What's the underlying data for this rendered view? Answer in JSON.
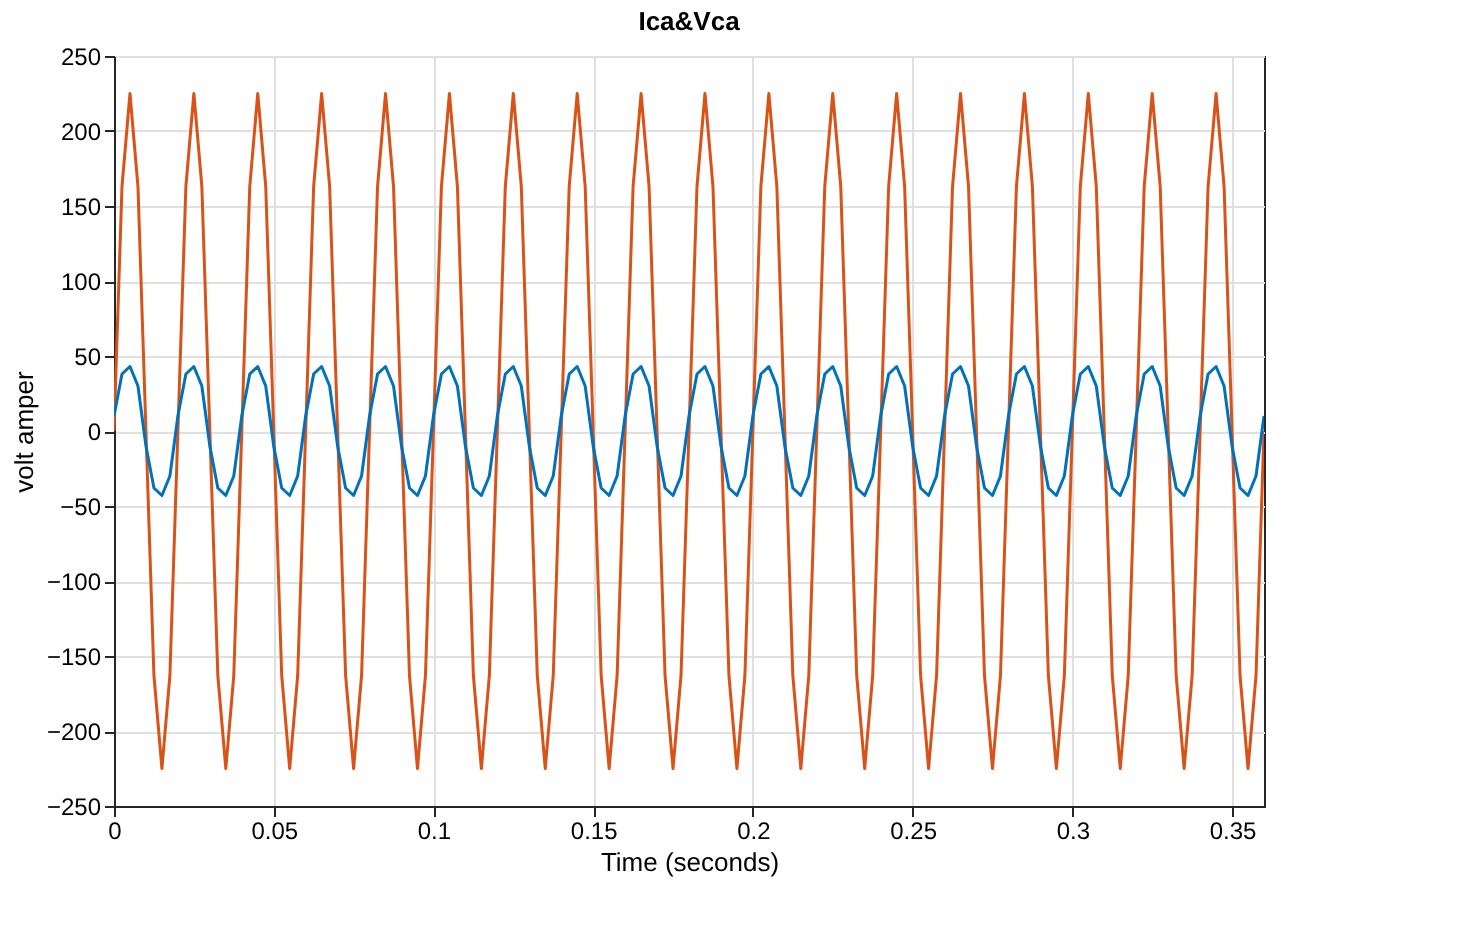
{
  "chart_data": {
    "type": "line",
    "title": "Ica&Vca",
    "xlabel": "Time (seconds)",
    "ylabel": "volt          amper",
    "x": [
      0,
      0.0025,
      0.005,
      0.0075,
      0.01,
      0.0125,
      0.015,
      0.0175,
      0.02,
      0.0225,
      0.025,
      0.0275,
      0.03,
      0.0325,
      0.035,
      0.0375,
      0.04,
      0.0425,
      0.045,
      0.0475,
      0.05,
      0.0525,
      0.055,
      0.0575,
      0.06,
      0.0625,
      0.065,
      0.0675,
      0.07,
      0.0725,
      0.075,
      0.0775,
      0.08,
      0.0825,
      0.085,
      0.0875,
      0.09,
      0.0925,
      0.095,
      0.0975,
      0.1,
      0.1025,
      0.105,
      0.1075,
      0.11,
      0.1125,
      0.115,
      0.1175,
      0.12,
      0.1225,
      0.125,
      0.1275,
      0.13,
      0.1325,
      0.135,
      0.1375,
      0.14,
      0.1425,
      0.145,
      0.1475,
      0.15,
      0.1525,
      0.155,
      0.1575,
      0.16,
      0.1625,
      0.165,
      0.1675,
      0.17,
      0.1725,
      0.175,
      0.1775,
      0.18,
      0.1825,
      0.185,
      0.1875,
      0.19,
      0.1925,
      0.195,
      0.1975,
      0.2,
      0.2025,
      0.205,
      0.2075,
      0.21,
      0.2125,
      0.215,
      0.2175,
      0.22,
      0.2225,
      0.225,
      0.2275,
      0.23,
      0.2325,
      0.235,
      0.2375,
      0.24,
      0.2425,
      0.245,
      0.2475,
      0.25,
      0.2525,
      0.255,
      0.2575,
      0.26,
      0.2625,
      0.265,
      0.2675,
      0.27,
      0.2725,
      0.275,
      0.2775,
      0.28,
      0.2825,
      0.285,
      0.2875,
      0.29,
      0.2925,
      0.295,
      0.2975,
      0.3,
      0.3025,
      0.305,
      0.3075,
      0.31,
      0.3125,
      0.315,
      0.3175,
      0.32,
      0.3225,
      0.325,
      0.3275,
      0.33,
      0.3325,
      0.335,
      0.3375,
      0.34,
      0.3425,
      0.345,
      0.3475,
      0.35,
      0.3525,
      0.355,
      0.3575,
      0.36
    ],
    "series": [
      {
        "color": "#d95319",
        "values": [
          0,
          163,
          225,
          163,
          0,
          -163,
          -225,
          -163,
          0,
          163,
          225,
          163,
          0,
          -163,
          -225,
          -163,
          0,
          163,
          225,
          163,
          0,
          -163,
          -225,
          -163,
          0,
          163,
          225,
          163,
          0,
          -163,
          -225,
          -163,
          0,
          163,
          225,
          163,
          0,
          -163,
          -225,
          -163,
          0,
          163,
          225,
          163,
          0,
          -163,
          -225,
          -163,
          0,
          163,
          225,
          163,
          0,
          -163,
          -225,
          -163,
          0,
          163,
          225,
          163,
          0,
          -163,
          -225,
          -163,
          0,
          163,
          225,
          163,
          0,
          -163,
          -225,
          -163,
          0,
          163,
          225,
          163,
          0,
          -163,
          -225,
          -163,
          0,
          163,
          225,
          163,
          0,
          -163,
          -225,
          -163,
          0,
          163,
          225,
          163,
          0,
          -163,
          -225,
          -163,
          0,
          163,
          225,
          163,
          0,
          -163,
          -225,
          -163,
          0,
          163,
          225,
          163,
          0,
          -163,
          -225,
          -163,
          0,
          163,
          225,
          163,
          0,
          -163,
          -225,
          -163,
          0,
          163,
          225,
          163,
          0,
          -163,
          -225,
          -163,
          0,
          163,
          225,
          163,
          0,
          -163,
          -225,
          -163,
          0,
          163,
          225,
          163,
          0,
          -163,
          -225,
          -163,
          0
        ]
      },
      {
        "color": "#0072bd",
        "values": [
          10,
          38,
          43,
          30,
          -10,
          -38,
          -43,
          -30,
          10,
          38,
          43,
          30,
          -10,
          -38,
          -43,
          -30,
          10,
          38,
          43,
          30,
          -10,
          -38,
          -43,
          -30,
          10,
          38,
          43,
          30,
          -10,
          -38,
          -43,
          -30,
          10,
          38,
          43,
          30,
          -10,
          -38,
          -43,
          -30,
          10,
          38,
          43,
          30,
          -10,
          -38,
          -43,
          -30,
          10,
          38,
          43,
          30,
          -10,
          -38,
          -43,
          -30,
          10,
          38,
          43,
          30,
          -10,
          -38,
          -43,
          -30,
          10,
          38,
          43,
          30,
          -10,
          -38,
          -43,
          -30,
          10,
          38,
          43,
          30,
          -10,
          -38,
          -43,
          -30,
          10,
          38,
          43,
          30,
          -10,
          -38,
          -43,
          -30,
          10,
          38,
          43,
          30,
          -10,
          -38,
          -43,
          -30,
          10,
          38,
          43,
          30,
          -10,
          -38,
          -43,
          -30,
          10,
          38,
          43,
          30,
          -10,
          -38,
          -43,
          -30,
          10,
          38,
          43,
          30,
          -10,
          -38,
          -43,
          -30,
          10,
          38,
          43,
          30,
          -10,
          -38,
          -43,
          -30,
          10,
          38,
          43,
          30,
          -10,
          -38,
          -43,
          -30,
          10,
          38,
          43,
          30,
          -10,
          -38,
          -43,
          -30,
          10
        ]
      }
    ],
    "xlim": [
      0,
      0.36
    ],
    "xticks": [
      0,
      0.05,
      0.1,
      0.15,
      0.2,
      0.25,
      0.3,
      0.35
    ],
    "ylim": [
      -250,
      250
    ],
    "yticks": [
      -250,
      -200,
      -150,
      -100,
      -50,
      0,
      50,
      100,
      150,
      200,
      250
    ],
    "grid": true,
    "marker": "none",
    "line_style": "solid"
  }
}
